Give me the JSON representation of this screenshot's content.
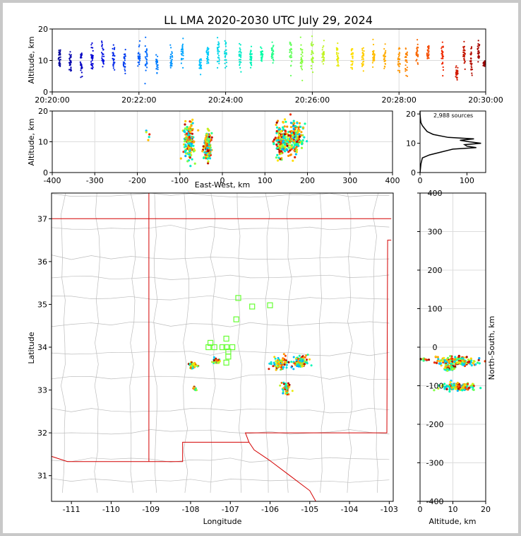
{
  "chart_data": [
    {
      "id": "time_altitude",
      "type": "scatter",
      "title": "LL LMA 2020-2030 UTC July 29, 2024",
      "ylabel": "Altitude, km",
      "xlim": [
        "20:20:00",
        "20:30:00"
      ],
      "ylim": [
        0,
        20
      ],
      "xticks": [
        "20:20:00",
        "20:22:00",
        "20:24:00",
        "20:26:00",
        "20:28:00",
        "20:30:00"
      ],
      "yticks": [
        0,
        10,
        20
      ],
      "color_by": "time",
      "grid": true,
      "clusters": [
        {
          "t": "20:20:10",
          "alt": 11,
          "spread": 3
        },
        {
          "t": "20:20:25",
          "alt": 10,
          "spread": 3
        },
        {
          "t": "20:20:40",
          "alt": 9,
          "spread": 3
        },
        {
          "t": "20:20:55",
          "alt": 11,
          "spread": 4
        },
        {
          "t": "20:21:10",
          "alt": 11,
          "spread": 4
        },
        {
          "t": "20:21:25",
          "alt": 11,
          "spread": 3
        },
        {
          "t": "20:21:40",
          "alt": 10,
          "spread": 3
        },
        {
          "t": "20:22:00",
          "alt": 11,
          "spread": 3
        },
        {
          "t": "20:22:10",
          "alt": 11,
          "spread": 4
        },
        {
          "t": "20:22:25",
          "alt": 9,
          "spread": 2
        },
        {
          "t": "20:22:45",
          "alt": 10,
          "spread": 3
        },
        {
          "t": "20:23:00",
          "alt": 12,
          "spread": 3
        },
        {
          "t": "20:23:25",
          "alt": 9,
          "spread": 2
        },
        {
          "t": "20:23:35",
          "alt": 11,
          "spread": 3
        },
        {
          "t": "20:23:50",
          "alt": 12,
          "spread": 4
        },
        {
          "t": "20:24:00",
          "alt": 12,
          "spread": 3
        },
        {
          "t": "20:24:20",
          "alt": 11,
          "spread": 3
        },
        {
          "t": "20:24:35",
          "alt": 11,
          "spread": 3
        },
        {
          "t": "20:24:50",
          "alt": 12,
          "spread": 3
        },
        {
          "t": "20:25:05",
          "alt": 12,
          "spread": 3
        },
        {
          "t": "20:25:30",
          "alt": 12,
          "spread": 4
        },
        {
          "t": "20:25:45",
          "alt": 10,
          "spread": 4
        },
        {
          "t": "20:26:00",
          "alt": 12,
          "spread": 4
        },
        {
          "t": "20:26:15",
          "alt": 12,
          "spread": 3
        },
        {
          "t": "20:26:35",
          "alt": 11,
          "spread": 3
        },
        {
          "t": "20:26:55",
          "alt": 11,
          "spread": 3
        },
        {
          "t": "20:27:10",
          "alt": 11,
          "spread": 3
        },
        {
          "t": "20:27:25",
          "alt": 11,
          "spread": 3
        },
        {
          "t": "20:27:40",
          "alt": 11,
          "spread": 3
        },
        {
          "t": "20:28:00",
          "alt": 10,
          "spread": 3
        },
        {
          "t": "20:28:10",
          "alt": 10,
          "spread": 4
        },
        {
          "t": "20:28:25",
          "alt": 12,
          "spread": 3
        },
        {
          "t": "20:28:40",
          "alt": 13,
          "spread": 3
        },
        {
          "t": "20:29:00",
          "alt": 12,
          "spread": 4
        },
        {
          "t": "20:29:20",
          "alt": 6,
          "spread": 2
        },
        {
          "t": "20:29:30",
          "alt": 12,
          "spread": 4
        },
        {
          "t": "20:29:40",
          "alt": 10,
          "spread": 3
        },
        {
          "t": "20:29:50",
          "alt": 13,
          "spread": 3
        },
        {
          "t": "20:29:58",
          "alt": 9,
          "spread": 1
        }
      ]
    },
    {
      "id": "east_west_altitude",
      "type": "scatter",
      "xlabel": "East-West, km",
      "ylabel": "Altitude, km",
      "xlim": [
        -400,
        400
      ],
      "ylim": [
        0,
        20
      ],
      "xticks": [
        -400,
        -300,
        -200,
        -100,
        0,
        100,
        200,
        300,
        400
      ],
      "yticks": [
        0,
        10,
        20
      ],
      "grid": true,
      "clusters": [
        {
          "x": -175,
          "alt": 12,
          "sx": 2,
          "sy": 1,
          "n": 5
        },
        {
          "x": -78,
          "alt": 10,
          "sx": 6,
          "sy": 3,
          "n": 200
        },
        {
          "x": -35,
          "alt": 9,
          "sx": 4,
          "sy": 2,
          "n": 150
        },
        {
          "x": -33,
          "alt": 6,
          "sx": 2,
          "sy": 1,
          "n": 40
        },
        {
          "x": 140,
          "alt": 10,
          "sx": 8,
          "sy": 2.5,
          "n": 250
        },
        {
          "x": 170,
          "alt": 11,
          "sx": 10,
          "sy": 3,
          "n": 350
        }
      ]
    },
    {
      "id": "altitude_histogram",
      "type": "line",
      "annotation": "2,988 sources",
      "xlim": [
        0,
        140
      ],
      "ylim": [
        0,
        21
      ],
      "xticks": [
        0,
        100
      ],
      "yticks": [
        0,
        10,
        20
      ],
      "alt": [
        0,
        3,
        5,
        6,
        7,
        8,
        8.5,
        9,
        9.5,
        10,
        10.5,
        11,
        11.5,
        12,
        13,
        14,
        15,
        16,
        17,
        18,
        20,
        21
      ],
      "count": [
        0,
        2,
        5,
        20,
        45,
        70,
        120,
        100,
        95,
        130,
        105,
        85,
        115,
        60,
        28,
        15,
        10,
        5,
        2,
        1,
        0,
        0
      ]
    },
    {
      "id": "plan_view",
      "type": "scatter",
      "xlabel": "Longitude",
      "ylabel": "Latitude",
      "xlim": [
        -111.5,
        -102.9
      ],
      "ylim": [
        30.4,
        37.6
      ],
      "xticks": [
        -111,
        -110,
        -109,
        -108,
        -107,
        -106,
        -105,
        -104,
        -103
      ],
      "yticks": [
        31,
        32,
        33,
        34,
        35,
        36,
        37
      ],
      "stations": [
        [
          -106.8,
          35.15
        ],
        [
          -106.45,
          34.95
        ],
        [
          -106.0,
          34.98
        ],
        [
          -106.85,
          34.65
        ],
        [
          -107.1,
          34.2
        ],
        [
          -107.5,
          34.1
        ],
        [
          -107.55,
          34.0
        ],
        [
          -107.4,
          34.0
        ],
        [
          -107.2,
          34.0
        ],
        [
          -107.1,
          34.0
        ],
        [
          -106.95,
          34.0
        ],
        [
          -107.05,
          33.9
        ],
        [
          -107.05,
          33.78
        ],
        [
          -107.1,
          33.64
        ]
      ],
      "clusters": [
        {
          "lon": -107.95,
          "lat": 33.58,
          "sx": 0.05,
          "sy": 0.04,
          "n": 60
        },
        {
          "lon": -107.35,
          "lat": 33.68,
          "sx": 0.05,
          "sy": 0.03,
          "n": 60
        },
        {
          "lon": -107.9,
          "lat": 33.03,
          "sx": 0.03,
          "sy": 0.02,
          "n": 15
        },
        {
          "lon": -105.75,
          "lat": 33.6,
          "sx": 0.1,
          "sy": 0.08,
          "n": 90
        },
        {
          "lon": -105.25,
          "lat": 33.65,
          "sx": 0.1,
          "sy": 0.06,
          "n": 150
        },
        {
          "lon": -105.6,
          "lat": 33.05,
          "sx": 0.05,
          "sy": 0.07,
          "n": 60
        }
      ]
    },
    {
      "id": "altitude_north_south",
      "type": "scatter",
      "xlabel": "Altitude, km",
      "ylabel": "North-South, km",
      "xlim": [
        0,
        20
      ],
      "ylim": [
        -400,
        400
      ],
      "xticks": [
        0,
        10,
        20
      ],
      "yticks": [
        -400,
        -300,
        -200,
        -100,
        0,
        100,
        200,
        300,
        400
      ],
      "grid": true,
      "clusters": [
        {
          "alt": 11,
          "ns": -37,
          "sx": 3,
          "sy": 6,
          "n": 400
        },
        {
          "alt": 9,
          "ns": -53,
          "sx": 1,
          "sy": 4,
          "n": 60
        },
        {
          "alt": 12,
          "ns": -103,
          "sx": 2.5,
          "sy": 5,
          "n": 150
        },
        {
          "alt": 1,
          "ns": -32,
          "sx": 1,
          "sy": 2,
          "n": 15
        }
      ]
    }
  ]
}
